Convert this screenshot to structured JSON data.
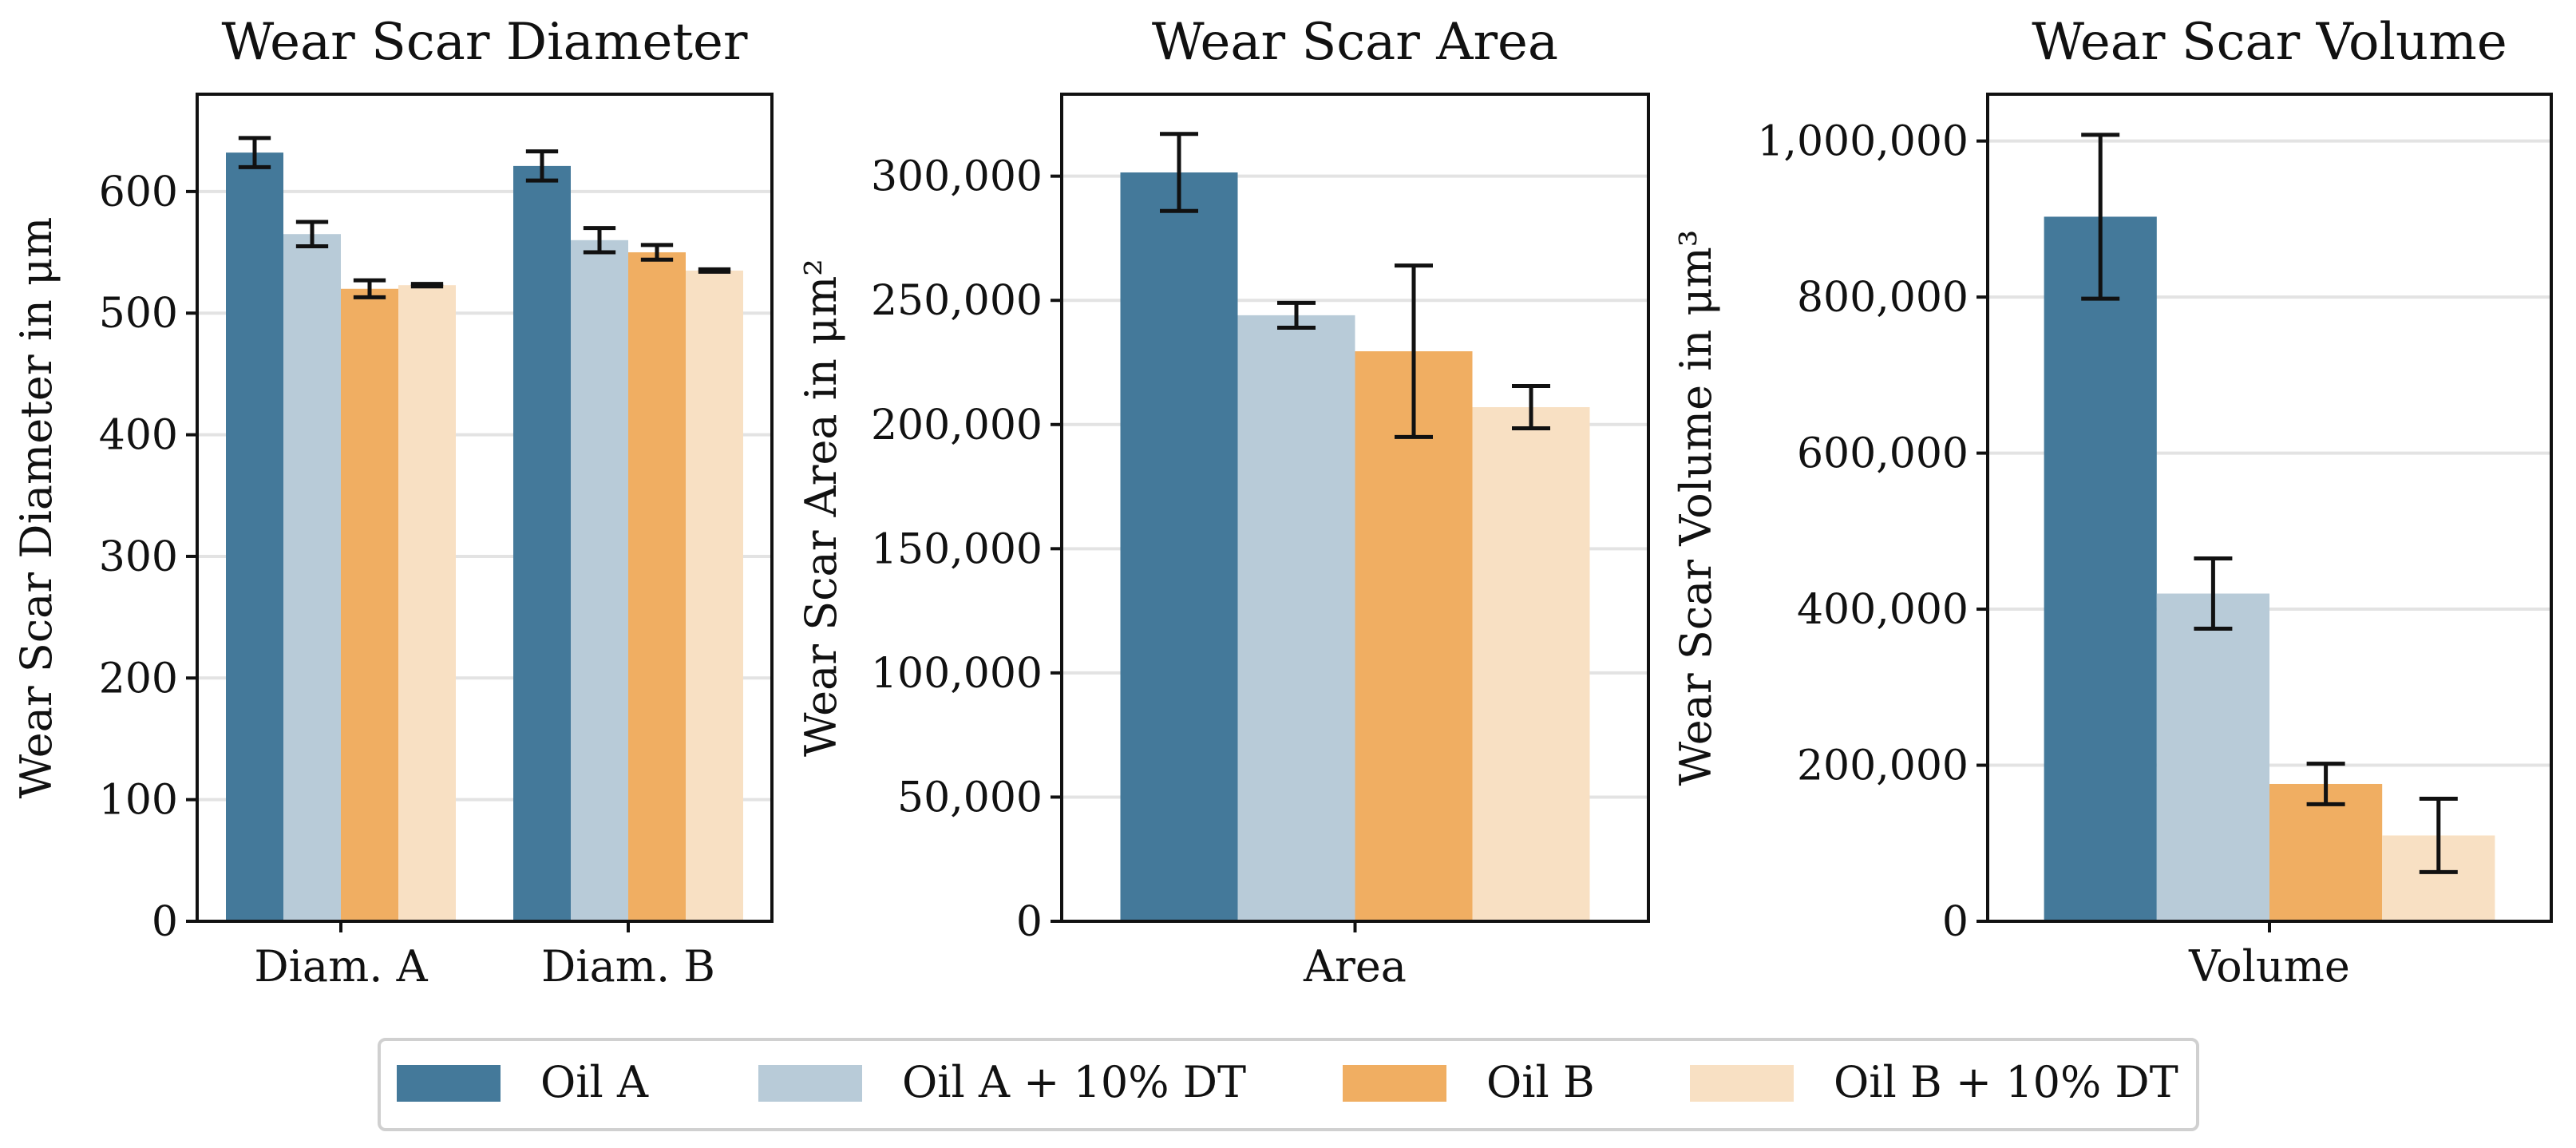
{
  "colors": {
    "oil_a": "#44799a",
    "oil_a_dt": "#b8cbd8",
    "oil_b": "#f0ae62",
    "oil_b_dt": "#f8e0c3",
    "grid": "#e3e3e3",
    "axis": "#111111"
  },
  "legend": {
    "items": [
      {
        "label": "Oil A",
        "color_key": "oil_a"
      },
      {
        "label": "Oil A + 10% DT",
        "color_key": "oil_a_dt"
      },
      {
        "label": "Oil B",
        "color_key": "oil_b"
      },
      {
        "label": "Oil B + 10% DT",
        "color_key": "oil_b_dt"
      }
    ]
  },
  "chart_data": [
    {
      "type": "bar",
      "title": "Wear Scar Diameter",
      "xlabel": "",
      "ylabel": "Wear Scar Diameter in μm",
      "ylim": [
        0,
        680
      ],
      "yticks": [
        0,
        100,
        200,
        300,
        400,
        500,
        600
      ],
      "ytick_labels": [
        "0",
        "100",
        "200",
        "300",
        "400",
        "500",
        "600"
      ],
      "grid": true,
      "categories": [
        "Diam. A",
        "Diam. B"
      ],
      "series": [
        {
          "name": "Oil A",
          "values": [
            632,
            621
          ],
          "errors": [
            12,
            12
          ]
        },
        {
          "name": "Oil A + 10% DT",
          "values": [
            565,
            560
          ],
          "errors": [
            10,
            10
          ]
        },
        {
          "name": "Oil B",
          "values": [
            520,
            550
          ],
          "errors": [
            7,
            6
          ]
        },
        {
          "name": "Oil B + 10% DT",
          "values": [
            523,
            535
          ],
          "errors": [
            1,
            1
          ]
        }
      ]
    },
    {
      "type": "bar",
      "title": "Wear Scar Area",
      "xlabel": "",
      "ylabel": "Wear Scar Area in μm²",
      "ylim": [
        0,
        333000
      ],
      "yticks": [
        0,
        50000,
        100000,
        150000,
        200000,
        250000,
        300000
      ],
      "ytick_labels": [
        "0",
        "50,000",
        "100,000",
        "150,000",
        "200,000",
        "250,000",
        "300,000"
      ],
      "grid": true,
      "categories": [
        "Area"
      ],
      "series": [
        {
          "name": "Oil A",
          "values": [
            301500
          ],
          "errors": [
            15500
          ]
        },
        {
          "name": "Oil A + 10% DT",
          "values": [
            244000
          ],
          "errors": [
            5000
          ]
        },
        {
          "name": "Oil B",
          "values": [
            229500
          ],
          "errors": [
            34500
          ]
        },
        {
          "name": "Oil B + 10% DT",
          "values": [
            207000
          ],
          "errors": [
            8500
          ]
        }
      ]
    },
    {
      "type": "bar",
      "title": "Wear Scar Volume",
      "xlabel": "",
      "ylabel": "Wear Scar Volume in μm³",
      "ylim": [
        0,
        1060000
      ],
      "yticks": [
        0,
        200000,
        400000,
        600000,
        800000,
        1000000
      ],
      "ytick_labels": [
        "0",
        "200,000",
        "400,000",
        "600,000",
        "800,000",
        "1,000,000"
      ],
      "grid": true,
      "categories": [
        "Volume"
      ],
      "series": [
        {
          "name": "Oil A",
          "values": [
            903000
          ],
          "errors": [
            105000
          ]
        },
        {
          "name": "Oil A + 10% DT",
          "values": [
            420000
          ],
          "errors": [
            45000
          ]
        },
        {
          "name": "Oil B",
          "values": [
            176000
          ],
          "errors": [
            26000
          ]
        },
        {
          "name": "Oil B + 10% DT",
          "values": [
            110000
          ],
          "errors": [
            47000
          ]
        }
      ]
    }
  ]
}
